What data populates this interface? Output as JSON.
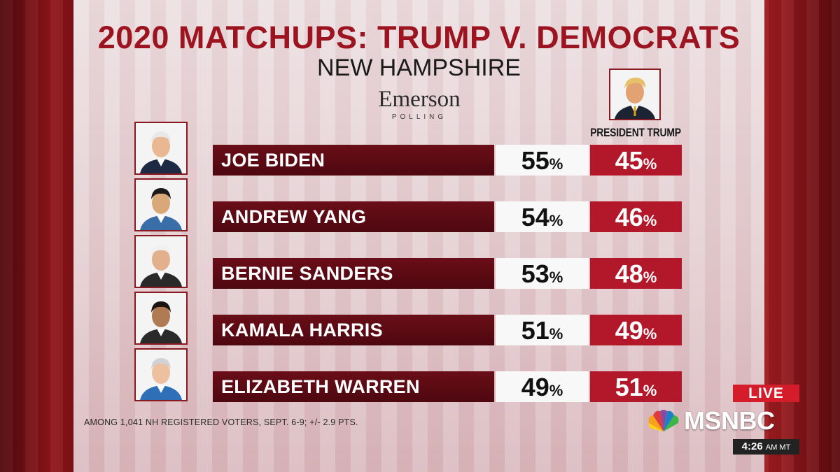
{
  "title": "2020 MATCHUPS: TRUMP V. DEMOCRATS",
  "subtitle": "NEW HAMPSHIRE",
  "pollster": {
    "name": "Emerson",
    "tagline": "POLLING"
  },
  "opponent_label": "PRESIDENT TRUMP",
  "percent_symbol": "%",
  "footnote": "AMONG 1,041 NH REGISTERED VOTERS, SEPT. 6-9; +/- 2.9 PTS.",
  "broadcast": {
    "live": "LIVE",
    "network": "MSNBC",
    "time": "4:26",
    "zone": "AM MT"
  },
  "colors": {
    "title": "#9b1420",
    "name_bar": "#5c0a14",
    "republican": "#b3172a",
    "democrat_cell": "#f8f8f8"
  },
  "chart_data": {
    "type": "bar",
    "title": "2020 MATCHUPS: TRUMP V. DEMOCRATS",
    "subtitle": "NEW HAMPSHIRE",
    "categories": [
      "JOE BIDEN",
      "ANDREW YANG",
      "BERNIE SANDERS",
      "KAMALA HARRIS",
      "ELIZABETH WARREN"
    ],
    "series": [
      {
        "name": "",
        "values": [
          55,
          54,
          53,
          51,
          49
        ]
      },
      {
        "name": "PRESIDENT TRUMP",
        "values": [
          45,
          46,
          48,
          49,
          51
        ]
      }
    ],
    "unit": "%"
  }
}
